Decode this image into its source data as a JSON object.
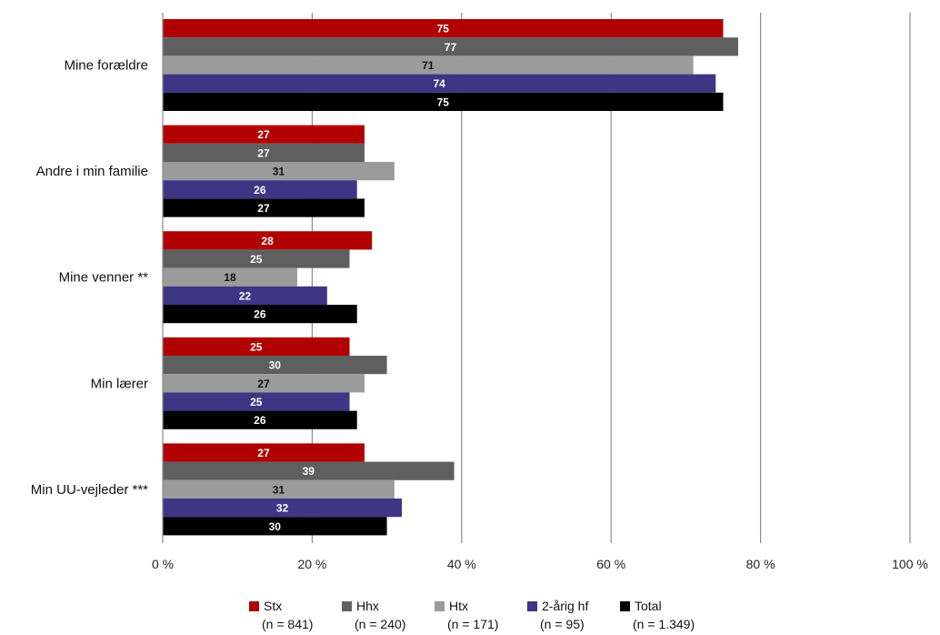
{
  "chart_data": {
    "type": "bar",
    "orientation": "horizontal",
    "categories": [
      "Mine forældre",
      "Andre i min familie",
      "Mine venner **",
      "Min lærer",
      "Min UU-vejleder ***"
    ],
    "series": [
      {
        "name": "Stx",
        "n_label": "(n = 841)",
        "color": "#B00000",
        "label_color": "#ffffff",
        "values": [
          75,
          27,
          28,
          25,
          27
        ]
      },
      {
        "name": "Hhx",
        "n_label": "(n = 240)",
        "color": "#5F5F5F",
        "label_color": "#ffffff",
        "values": [
          77,
          27,
          25,
          30,
          39
        ]
      },
      {
        "name": "Htx",
        "n_label": "(n = 171)",
        "color": "#9B9B9B",
        "label_color": "#111111",
        "values": [
          71,
          31,
          18,
          27,
          31
        ]
      },
      {
        "name": "2-årig hf",
        "n_label": "(n = 95)",
        "color": "#3E3585",
        "label_color": "#ffffff",
        "values": [
          74,
          26,
          22,
          25,
          32
        ]
      },
      {
        "name": "Total",
        "n_label": "(n = 1.349)",
        "color": "#000000",
        "label_color": "#ffffff",
        "values": [
          75,
          27,
          26,
          26,
          30
        ]
      }
    ],
    "xlim": [
      0,
      100
    ],
    "xticks": [
      0,
      20,
      40,
      60,
      80,
      100
    ],
    "xtick_labels": [
      "0 %",
      "20 %",
      "40 %",
      "60 %",
      "80 %",
      "100 %"
    ],
    "grid": true,
    "legend_position": "bottom"
  }
}
